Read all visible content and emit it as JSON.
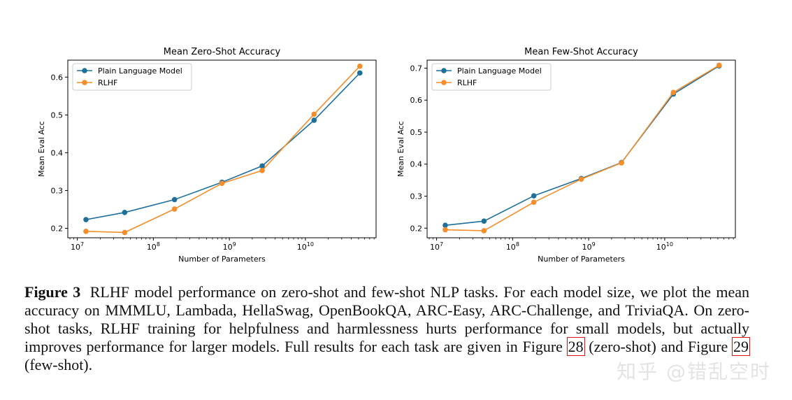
{
  "chart_data": [
    {
      "type": "line",
      "title": "Mean Zero-Shot Accuracy",
      "xlabel": "Number of Parameters",
      "ylabel": "Mean Eval Acc",
      "xscale": "log",
      "xlim": [
        7500000.0,
        85000000000.0
      ],
      "ylim": [
        0.175,
        0.645
      ],
      "yticks": [
        0.2,
        0.3,
        0.4,
        0.5,
        0.6
      ],
      "ytick_labels": [
        "0.2",
        "0.3",
        "0.4",
        "0.5",
        "0.6"
      ],
      "xticks": [
        10000000.0,
        100000000.0,
        1000000000.0,
        10000000000.0
      ],
      "xtick_labels": [
        {
          "base": "10",
          "exp": "7"
        },
        {
          "base": "10",
          "exp": "8"
        },
        {
          "base": "10",
          "exp": "9"
        },
        {
          "base": "10",
          "exp": "10"
        }
      ],
      "legend_position": "top-left",
      "x": [
        13000000.0,
        42000000.0,
        190000000.0,
        800000000.0,
        2700000000.0,
        13000000000.0,
        52000000000.0
      ],
      "series": [
        {
          "name": "Plain Language Model",
          "color": "#1f6f9b",
          "values": [
            0.223,
            0.242,
            0.276,
            0.322,
            0.365,
            0.486,
            0.611
          ]
        },
        {
          "name": "RLHF",
          "color": "#f28e2b",
          "values": [
            0.192,
            0.189,
            0.251,
            0.319,
            0.353,
            0.502,
            0.629
          ]
        }
      ]
    },
    {
      "type": "line",
      "title": "Mean Few-Shot Accuracy",
      "xlabel": "Number of Parameters",
      "ylabel": "Mean Eval Acc",
      "xscale": "log",
      "xlim": [
        7500000.0,
        85000000000.0
      ],
      "ylim": [
        0.17,
        0.725
      ],
      "yticks": [
        0.2,
        0.3,
        0.4,
        0.5,
        0.6,
        0.7
      ],
      "ytick_labels": [
        "0.2",
        "0.3",
        "0.4",
        "0.5",
        "0.6",
        "0.7"
      ],
      "xticks": [
        10000000.0,
        100000000.0,
        1000000000.0,
        10000000000.0
      ],
      "xtick_labels": [
        {
          "base": "10",
          "exp": "7"
        },
        {
          "base": "10",
          "exp": "8"
        },
        {
          "base": "10",
          "exp": "9"
        },
        {
          "base": "10",
          "exp": "10"
        }
      ],
      "legend_position": "top-left",
      "x": [
        13000000.0,
        42000000.0,
        190000000.0,
        800000000.0,
        2700000000.0,
        13000000000.0,
        52000000000.0
      ],
      "series": [
        {
          "name": "Plain Language Model",
          "color": "#1f6f9b",
          "values": [
            0.209,
            0.222,
            0.301,
            0.355,
            0.405,
            0.619,
            0.707
          ]
        },
        {
          "name": "RLHF",
          "color": "#f28e2b",
          "values": [
            0.195,
            0.192,
            0.281,
            0.353,
            0.404,
            0.624,
            0.709
          ]
        }
      ]
    }
  ],
  "caption": {
    "label": "Figure 3",
    "text_main": "RLHF model performance on zero-shot and few-shot NLP tasks. For each model size, we plot the mean accuracy on MMMLU, Lambada, HellaSwag, OpenBookQA, ARC-Easy, ARC-Challenge, and TriviaQA. On zero-shot tasks, RLHF training for helpfulness and harmlessness hurts performance for small models, but actually improves performance for larger models. Full results for each task are given in Figure",
    "ref1": "28",
    "mid": "(zero-shot) and Figure",
    "ref2": "29",
    "end": "(few-shot)."
  },
  "watermark": "知乎 @错乱空时",
  "colors": {
    "box_ref": "#dd1111"
  }
}
